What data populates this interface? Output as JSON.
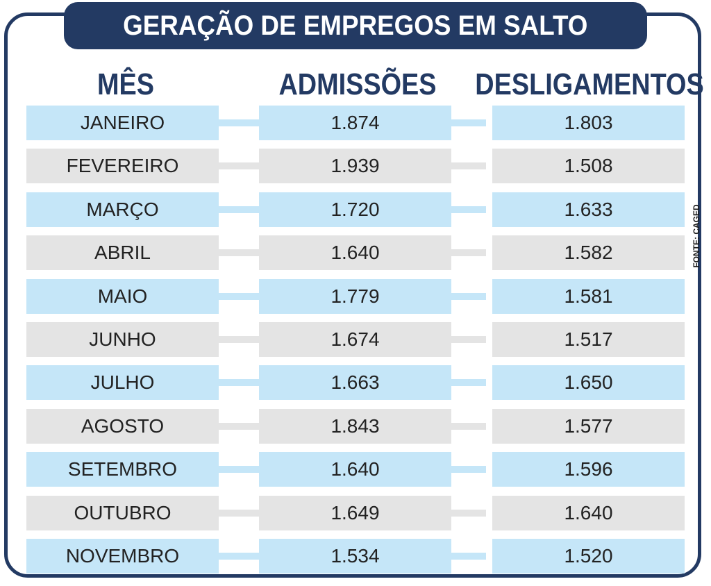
{
  "title": "GERAÇÃO DE EMPREGOS EM SALTO",
  "source": "FONTE: CAGED",
  "colors": {
    "frame": "#233a63",
    "header_text": "#233a63",
    "row_blue": "#c5e6f8",
    "row_gray": "#e4e4e4"
  },
  "chart_data": {
    "type": "table",
    "title": "GERAÇÃO DE EMPREGOS EM SALTO",
    "columns": [
      "MÊS",
      "ADMISSÕES",
      "DESLIGAMENTOS"
    ],
    "rows": [
      [
        "JANEIRO",
        "1.874",
        "1.803"
      ],
      [
        "FEVEREIRO",
        "1.939",
        "1.508"
      ],
      [
        "MARÇO",
        "1.720",
        "1.633"
      ],
      [
        "ABRIL",
        "1.640",
        "1.582"
      ],
      [
        "MAIO",
        "1.779",
        "1.581"
      ],
      [
        "JUNHO",
        "1.674",
        "1.517"
      ],
      [
        "JULHO",
        "1.663",
        "1.650"
      ],
      [
        "AGOSTO",
        "1.843",
        "1.577"
      ],
      [
        "SETEMBRO",
        "1.640",
        "1.596"
      ],
      [
        "OUTUBRO",
        "1.649",
        "1.640"
      ],
      [
        "NOVEMBRO",
        "1.534",
        "1.520"
      ]
    ],
    "source": "FONTE: CAGED"
  }
}
